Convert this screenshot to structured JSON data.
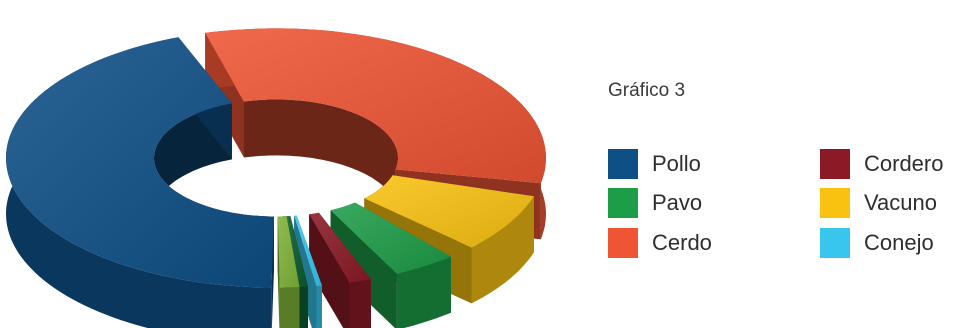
{
  "chart_data": {
    "type": "pie",
    "style": "exploded 3D donut",
    "title": "Gráfico 3",
    "slices": [
      {
        "label": "Pollo",
        "value": 45.5,
        "color": "#0e4f86"
      },
      {
        "label": "Cerdo",
        "value": 34.0,
        "color": "#ef5434"
      },
      {
        "label": "Vacuno",
        "value": 9.0,
        "color": "#f9c211"
      },
      {
        "label": "Pavo",
        "value": 5.5,
        "color": "#1d9d48"
      },
      {
        "label": "Cordero",
        "value": 3.0,
        "color": "#8b1a26"
      },
      {
        "label": "Conejo",
        "value": 2.0,
        "color": "#38c6ee"
      },
      {
        "label": "",
        "value": 0.5,
        "color": "#0b5b2f"
      },
      {
        "label": "",
        "value": 0.5,
        "color": "#7fb338"
      }
    ],
    "legend": {
      "placement": "right",
      "columns": 2,
      "entries": [
        {
          "label": "Pollo",
          "color": "#0e4f86"
        },
        {
          "label": "Pavo",
          "color": "#1d9d48"
        },
        {
          "label": "Cerdo",
          "color": "#ef5434"
        },
        {
          "label": "Cordero",
          "color": "#8b1a26"
        },
        {
          "label": "Vacuno",
          "color": "#f9c211"
        },
        {
          "label": "Conejo",
          "color": "#38c6ee"
        }
      ]
    }
  }
}
